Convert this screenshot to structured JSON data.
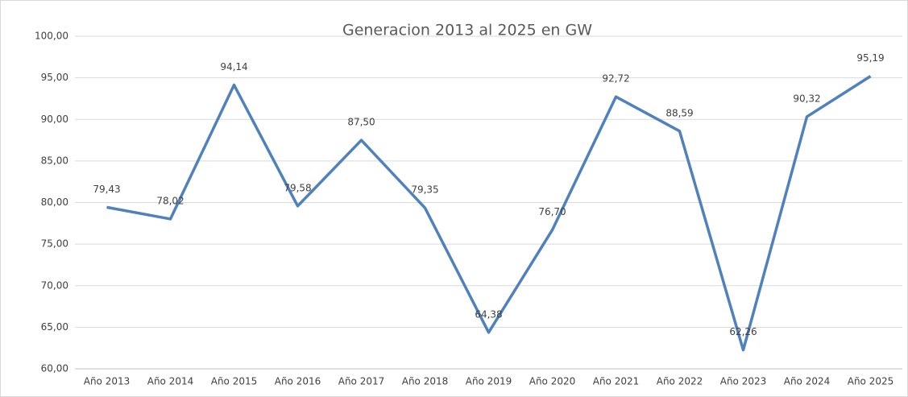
{
  "chart_data": {
    "type": "line",
    "title": "Generacion 2013 al 2025  en GW",
    "categories": [
      "Año 2013",
      "Año 2014",
      "Año 2015",
      "Año 2016",
      "Año 2017",
      "Año 2018",
      "Año 2019",
      "Año 2020",
      "Año 2021",
      "Año 2022",
      "Año 2023",
      "Año 2024",
      "Año 2025"
    ],
    "series": [
      {
        "name": "Generacion",
        "color": "#4f81bd",
        "values": [
          79.43,
          78.02,
          94.14,
          79.58,
          87.5,
          79.35,
          64.38,
          76.7,
          92.72,
          88.59,
          62.26,
          90.32,
          95.19
        ],
        "value_labels": [
          "79,43",
          "78,02",
          "94,14",
          "79,58",
          "87,50",
          "79,35",
          "64,38",
          "76,70",
          "92,72",
          "88,59",
          "62,26",
          "90,32",
          "95,19"
        ]
      }
    ],
    "ylim": [
      60,
      100
    ],
    "yticks": [
      {
        "value": 60,
        "label": "60,00"
      },
      {
        "value": 65,
        "label": "65,00"
      },
      {
        "value": 70,
        "label": "70,00"
      },
      {
        "value": 75,
        "label": "75,00"
      },
      {
        "value": 80,
        "label": "80,00"
      },
      {
        "value": 85,
        "label": "85,00"
      },
      {
        "value": 90,
        "label": "90,00"
      },
      {
        "value": 95,
        "label": "95,00"
      },
      {
        "value": 100,
        "label": "100,00"
      }
    ],
    "grid": true
  }
}
